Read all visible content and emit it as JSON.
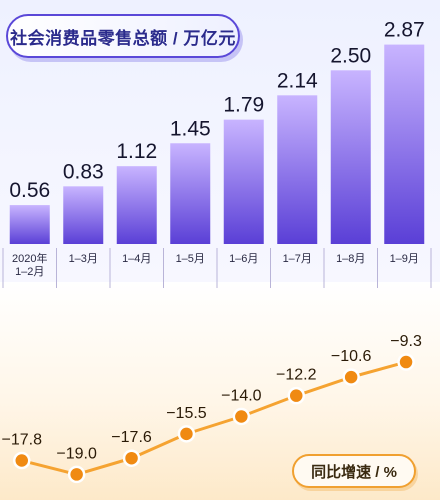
{
  "bar_title": "社会消费品零售总额 / 万亿元",
  "line_legend": "同比增速 / %",
  "colors": {
    "bar_top": "#c8b4ff",
    "bar_bottom": "#5a3fd6",
    "line": "#f5a331",
    "point": "#f08a12",
    "title_border": "#5a48d8",
    "legend_border": "#f0a030"
  },
  "chart_data": [
    {
      "type": "bar",
      "title": "社会消费品零售总额 / 万亿元",
      "categories": [
        [
          "2020年",
          "1–2月"
        ],
        [
          "1–3月"
        ],
        [
          "1–4月"
        ],
        [
          "1–5月"
        ],
        [
          "1–6月"
        ],
        [
          "1–7月"
        ],
        [
          "1–8月"
        ],
        [
          "1–9月"
        ]
      ],
      "values": [
        "0.56",
        "0.83",
        "1.12",
        "1.45",
        "1.79",
        "2.14",
        "2.50",
        "2.87"
      ],
      "ylim": [
        0,
        3.0
      ],
      "grid": false
    },
    {
      "type": "line",
      "title": "同比增速 / %",
      "categories": [
        [
          "2020年",
          "1–2月"
        ],
        [
          "1–3月"
        ],
        [
          "1–4月"
        ],
        [
          "1–5月"
        ],
        [
          "1–6月"
        ],
        [
          "1–7月"
        ],
        [
          "1–8月"
        ],
        [
          "1–9月"
        ]
      ],
      "values": [
        "−17.8",
        "−19.0",
        "−17.6",
        "−15.5",
        "−14.0",
        "−12.2",
        "−10.6",
        "−9.3"
      ],
      "ylim": [
        -20,
        -8
      ],
      "grid": false
    }
  ]
}
